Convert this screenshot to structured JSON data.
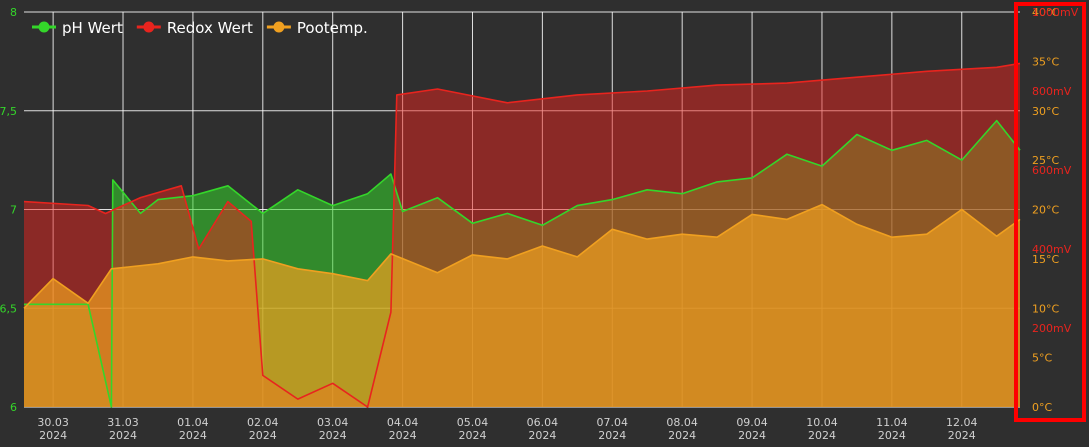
{
  "chart_data": {
    "type": "area",
    "x_unit": "days",
    "x_ticks": [
      {
        "date": "30.03",
        "year": "2024"
      },
      {
        "date": "31.03",
        "year": "2024"
      },
      {
        "date": "01.04",
        "year": "2024"
      },
      {
        "date": "02.04",
        "year": "2024"
      },
      {
        "date": "03.04",
        "year": "2024"
      },
      {
        "date": "04.04",
        "year": "2024"
      },
      {
        "date": "05.04",
        "year": "2024"
      },
      {
        "date": "06.04",
        "year": "2024"
      },
      {
        "date": "07.04",
        "year": "2024"
      },
      {
        "date": "08.04",
        "year": "2024"
      },
      {
        "date": "09.04",
        "year": "2024"
      },
      {
        "date": "10.04",
        "year": "2024"
      },
      {
        "date": "11.04",
        "year": "2024"
      },
      {
        "date": "12.04",
        "year": "2024"
      }
    ],
    "xlim": [
      "29.03.2024 14:00",
      "12.04.2024 20:00"
    ],
    "axes": {
      "ph": {
        "ticks": [
          "6",
          "6,5",
          "7",
          "7,5",
          "8"
        ],
        "ylim": [
          6,
          8
        ],
        "color": "#34d62a"
      },
      "redox": {
        "ticks": [
          "200mV",
          "400mV",
          "600mV",
          "800mV",
          "1000mV"
        ],
        "ylim": [
          0,
          1000
        ],
        "color": "#e8241e"
      },
      "temp": {
        "ticks": [
          "0°C",
          "5°C",
          "10°C",
          "15°C",
          "20°C",
          "25°C",
          "30°C",
          "35°C",
          "40°C"
        ],
        "ylim": [
          0,
          40
        ],
        "color": "#f0a020"
      }
    },
    "series": [
      {
        "name": "pH Wert",
        "axis": "ph",
        "color": "#34d62a",
        "points": [
          [
            "29.03.2024 14:00",
            6.52
          ],
          [
            "30.03.2024 12:00",
            6.52
          ],
          [
            "30.03.2024 20:00",
            6.0
          ],
          [
            "30.03.2024 20:30",
            7.15
          ],
          [
            "31.03.2024 06:00",
            6.98
          ],
          [
            "31.03.2024 12:00",
            7.05
          ],
          [
            "01.04.2024 00:00",
            7.07
          ],
          [
            "01.04.2024 12:00",
            7.12
          ],
          [
            "02.04.2024 00:00",
            6.98
          ],
          [
            "02.04.2024 12:00",
            7.1
          ],
          [
            "03.04.2024 00:00",
            7.02
          ],
          [
            "03.04.2024 12:00",
            7.08
          ],
          [
            "03.04.2024 20:00",
            7.18
          ],
          [
            "04.04.2024 00:00",
            6.99
          ],
          [
            "04.04.2024 12:00",
            7.06
          ],
          [
            "05.04.2024 00:00",
            6.93
          ],
          [
            "05.04.2024 12:00",
            6.98
          ],
          [
            "06.04.2024 00:00",
            6.92
          ],
          [
            "06.04.2024 12:00",
            7.02
          ],
          [
            "07.04.2024 00:00",
            7.05
          ],
          [
            "07.04.2024 12:00",
            7.1
          ],
          [
            "08.04.2024 00:00",
            7.08
          ],
          [
            "08.04.2024 12:00",
            7.14
          ],
          [
            "09.04.2024 00:00",
            7.16
          ],
          [
            "09.04.2024 12:00",
            7.28
          ],
          [
            "10.04.2024 00:00",
            7.22
          ],
          [
            "10.04.2024 12:00",
            7.38
          ],
          [
            "11.04.2024 00:00",
            7.3
          ],
          [
            "11.04.2024 12:00",
            7.35
          ],
          [
            "12.04.2024 00:00",
            7.25
          ],
          [
            "12.04.2024 12:00",
            7.45
          ],
          [
            "12.04.2024 20:00",
            7.3
          ]
        ]
      },
      {
        "name": "Redox Wert",
        "axis": "redox",
        "color": "#e8241e",
        "points": [
          [
            "29.03.2024 14:00",
            520
          ],
          [
            "30.03.2024 12:00",
            510
          ],
          [
            "30.03.2024 18:00",
            490
          ],
          [
            "31.03.2024 06:00",
            530
          ],
          [
            "31.03.2024 20:00",
            560
          ],
          [
            "01.04.2024 02:00",
            400
          ],
          [
            "01.04.2024 12:00",
            520
          ],
          [
            "01.04.2024 20:00",
            470
          ],
          [
            "02.04.2024 00:00",
            80
          ],
          [
            "02.04.2024 12:00",
            20
          ],
          [
            "03.04.2024 00:00",
            60
          ],
          [
            "03.04.2024 12:00",
            0
          ],
          [
            "03.04.2024 20:00",
            240
          ],
          [
            "03.04.2024 22:00",
            790
          ],
          [
            "04.04.2024 12:00",
            805
          ],
          [
            "05.04.2024 12:00",
            770
          ],
          [
            "06.04.2024 12:00",
            790
          ],
          [
            "07.04.2024 12:00",
            800
          ],
          [
            "08.04.2024 12:00",
            815
          ],
          [
            "09.04.2024 12:00",
            820
          ],
          [
            "10.04.2024 12:00",
            835
          ],
          [
            "11.04.2024 12:00",
            850
          ],
          [
            "12.04.2024 12:00",
            860
          ],
          [
            "12.04.2024 20:00",
            870
          ]
        ]
      },
      {
        "name": "Pootemp.",
        "axis": "temp",
        "color": "#f0a020",
        "points": [
          [
            "29.03.2024 14:00",
            10.0
          ],
          [
            "30.03.2024 00:00",
            13.0
          ],
          [
            "30.03.2024 12:00",
            10.5
          ],
          [
            "30.03.2024 20:00",
            14.0
          ],
          [
            "31.03.2024 12:00",
            14.5
          ],
          [
            "01.04.2024 00:00",
            15.2
          ],
          [
            "01.04.2024 12:00",
            14.8
          ],
          [
            "02.04.2024 00:00",
            15.0
          ],
          [
            "02.04.2024 12:00",
            14.0
          ],
          [
            "03.04.2024 00:00",
            13.5
          ],
          [
            "03.04.2024 12:00",
            12.8
          ],
          [
            "03.04.2024 20:00",
            15.5
          ],
          [
            "04.04.2024 12:00",
            13.6
          ],
          [
            "05.04.2024 00:00",
            15.4
          ],
          [
            "05.04.2024 12:00",
            15.0
          ],
          [
            "06.04.2024 00:00",
            16.3
          ],
          [
            "06.04.2024 12:00",
            15.2
          ],
          [
            "07.04.2024 00:00",
            18.0
          ],
          [
            "07.04.2024 12:00",
            17.0
          ],
          [
            "08.04.2024 00:00",
            17.5
          ],
          [
            "08.04.2024 12:00",
            17.2
          ],
          [
            "09.04.2024 00:00",
            19.5
          ],
          [
            "09.04.2024 12:00",
            19.0
          ],
          [
            "10.04.2024 00:00",
            20.5
          ],
          [
            "10.04.2024 12:00",
            18.5
          ],
          [
            "11.04.2024 00:00",
            17.2
          ],
          [
            "11.04.2024 12:00",
            17.5
          ],
          [
            "12.04.2024 00:00",
            20.0
          ],
          [
            "12.04.2024 12:00",
            17.3
          ],
          [
            "12.04.2024 20:00",
            19.0
          ]
        ]
      }
    ],
    "grid": true,
    "legend": "top-left",
    "highlight": {
      "target": "right-axes",
      "color": "#ff0000"
    }
  }
}
